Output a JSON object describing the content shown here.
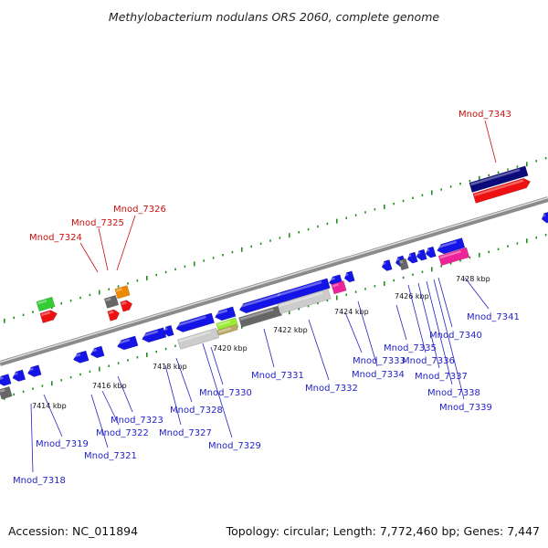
{
  "title": "Methylobacterium nodulans ORS 2060, complete genome",
  "footer": {
    "accession": "Accession: NC_011894",
    "summary": "Topology: circular; Length: 7,772,460 bp; Genes: 7,447"
  },
  "colors": {
    "backbone": "#8a8a8a",
    "tick": "#1f8f1f",
    "label_blue": "#2323c8",
    "label_red": "#cc1111",
    "gene_blue": "#1414e6",
    "gene_red": "#ee1111",
    "gene_navy": "#0a0a7a",
    "gene_green": "#33cc33",
    "gene_orange": "#ee8800",
    "gene_magenta": "#ee2299",
    "gene_gray": "#666666",
    "gene_lightgray": "#cccccc",
    "gene_lime": "#99ee33",
    "gene_khaki": "#bbaa66"
  },
  "scale_labels": [
    {
      "text": "7414 kbp"
    },
    {
      "text": "7416 kbp"
    },
    {
      "text": "7418 kbp"
    },
    {
      "text": "7420 kbp"
    },
    {
      "text": "7422 kbp"
    },
    {
      "text": "7424 kbp"
    },
    {
      "text": "7426 kbp"
    },
    {
      "text": "7428 kbp"
    }
  ],
  "gene_labels": [
    {
      "id": "Mnod_7318",
      "color": "blue"
    },
    {
      "id": "Mnod_7319",
      "color": "blue"
    },
    {
      "id": "Mnod_7321",
      "color": "blue"
    },
    {
      "id": "Mnod_7322",
      "color": "blue"
    },
    {
      "id": "Mnod_7323",
      "color": "blue"
    },
    {
      "id": "Mnod_7324",
      "color": "red"
    },
    {
      "id": "Mnod_7325",
      "color": "red"
    },
    {
      "id": "Mnod_7326",
      "color": "red"
    },
    {
      "id": "Mnod_7327",
      "color": "blue"
    },
    {
      "id": "Mnod_7328",
      "color": "blue"
    },
    {
      "id": "Mnod_7329",
      "color": "blue"
    },
    {
      "id": "Mnod_7330",
      "color": "blue"
    },
    {
      "id": "Mnod_7331",
      "color": "blue"
    },
    {
      "id": "Mnod_7332",
      "color": "blue"
    },
    {
      "id": "Mnod_7333",
      "color": "blue"
    },
    {
      "id": "Mnod_7334",
      "color": "blue"
    },
    {
      "id": "Mnod_7335",
      "color": "blue"
    },
    {
      "id": "Mnod_7336",
      "color": "blue"
    },
    {
      "id": "Mnod_7337",
      "color": "blue"
    },
    {
      "id": "Mnod_7338",
      "color": "blue"
    },
    {
      "id": "Mnod_7339",
      "color": "blue"
    },
    {
      "id": "Mnod_7340",
      "color": "blue"
    },
    {
      "id": "Mnod_7341",
      "color": "blue"
    },
    {
      "id": "Mnod_7343",
      "color": "red"
    }
  ]
}
